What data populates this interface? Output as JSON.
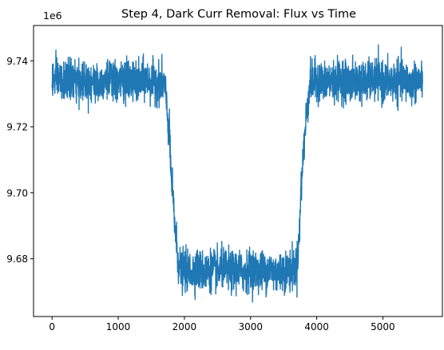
{
  "chart_data": {
    "type": "line",
    "title": "Step 4, Dark Curr Removal: Flux vs Time",
    "xlabel": "",
    "ylabel": "",
    "y_offset_label": "1e6",
    "xlim": [
      -280,
      5900
    ],
    "ylim": [
      9.6625,
      9.7507
    ],
    "x_ticks": [
      0,
      1000,
      2000,
      3000,
      4000,
      5000
    ],
    "x_tick_labels": [
      "0",
      "1000",
      "2000",
      "3000",
      "4000",
      "5000"
    ],
    "y_ticks": [
      9.68,
      9.7,
      9.72,
      9.74
    ],
    "y_tick_labels": [
      "9.68",
      "9.70",
      "9.72",
      "9.74"
    ],
    "grid": false,
    "series": [
      {
        "color": "#1f77b4",
        "x": [
          0,
          100,
          200,
          300,
          400,
          500,
          600,
          700,
          800,
          900,
          1000,
          1100,
          1200,
          1300,
          1400,
          1500,
          1600,
          1700,
          1740,
          1780,
          1800,
          1850,
          1900,
          1950,
          2000,
          2100,
          2200,
          2300,
          2400,
          2500,
          2600,
          2700,
          2800,
          2900,
          3000,
          3100,
          3200,
          3300,
          3400,
          3500,
          3600,
          3700,
          3740,
          3760,
          3800,
          3850,
          3900,
          4000,
          4100,
          4200,
          4300,
          4400,
          4500,
          4600,
          4700,
          4800,
          4900,
          5000,
          5100,
          5200,
          5300,
          5400,
          5500,
          5600
        ],
        "y": [
          9.734,
          9.7345,
          9.7333,
          9.735,
          9.7328,
          9.7342,
          9.7335,
          9.733,
          9.7348,
          9.7336,
          9.7332,
          9.7344,
          9.7338,
          9.733,
          9.7346,
          9.7334,
          9.7336,
          9.733,
          9.725,
          9.715,
          9.705,
          9.692,
          9.68,
          9.676,
          9.6765,
          9.6762,
          9.677,
          9.6758,
          9.6768,
          9.6762,
          9.6772,
          9.676,
          9.6766,
          9.6758,
          9.677,
          9.6764,
          9.676,
          9.6768,
          9.6756,
          9.6766,
          9.6762,
          9.678,
          9.688,
          9.7,
          9.712,
          9.725,
          9.733,
          9.7345,
          9.7332,
          9.734,
          9.7336,
          9.7348,
          9.733,
          9.7342,
          9.7334,
          9.7338,
          9.7346,
          9.7332,
          9.734,
          9.7336,
          9.7344,
          9.733,
          9.7338,
          9.7342
        ]
      }
    ]
  }
}
